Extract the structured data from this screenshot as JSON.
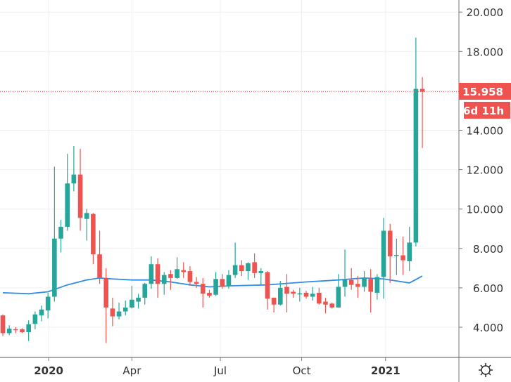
{
  "chart_data": {
    "type": "candlestick",
    "interval": "weekly",
    "colors": {
      "up": "#26a69a",
      "down": "#ef5350",
      "ma": "#2f8de4",
      "grid": "#eef0f3",
      "axis": "#777777"
    },
    "ylim": [
      2.6,
      20.6
    ],
    "y_ticks": [
      4,
      6,
      8,
      10,
      12,
      14,
      16,
      18,
      20
    ],
    "y_tick_labels": [
      "4.000",
      "6.000",
      "8.000",
      "10.000",
      "12.000",
      "14.000",
      "16.000",
      "18.000",
      "20.000"
    ],
    "x_ticks": [
      {
        "label": "2020",
        "index": 7.1,
        "bold": true
      },
      {
        "label": "Apr",
        "index": 20.0,
        "bold": false
      },
      {
        "label": "Jul",
        "index": 33.7,
        "bold": false
      },
      {
        "label": "Oct",
        "index": 46.3,
        "bold": false
      },
      {
        "label": "2021",
        "index": 59.3,
        "bold": true
      }
    ],
    "candles": [
      [
        4.6,
        4.65,
        3.55,
        3.7
      ],
      [
        3.7,
        4.1,
        3.6,
        3.93
      ],
      [
        3.9,
        4.0,
        3.7,
        3.85
      ],
      [
        3.9,
        3.95,
        3.7,
        3.75
      ],
      [
        3.75,
        4.35,
        3.3,
        4.15
      ],
      [
        4.17,
        4.8,
        3.9,
        4.65
      ],
      [
        4.6,
        5.1,
        4.3,
        4.9
      ],
      [
        4.85,
        5.75,
        4.45,
        5.55
      ],
      [
        5.55,
        12.15,
        5.3,
        8.5
      ],
      [
        8.5,
        9.45,
        7.8,
        9.1
      ],
      [
        9.1,
        12.8,
        8.9,
        11.3
      ],
      [
        11.3,
        13.2,
        10.9,
        11.75
      ],
      [
        11.75,
        13.05,
        8.9,
        9.55
      ],
      [
        9.5,
        10.0,
        8.4,
        9.8
      ],
      [
        9.75,
        9.8,
        7.2,
        7.7
      ],
      [
        7.7,
        8.9,
        6.2,
        6.5
      ],
      [
        6.5,
        7.0,
        3.2,
        5.0
      ],
      [
        4.95,
        5.5,
        4.05,
        4.55
      ],
      [
        4.55,
        5.25,
        4.4,
        4.8
      ],
      [
        4.8,
        5.35,
        4.6,
        5.0
      ],
      [
        5.0,
        6.1,
        4.95,
        5.4
      ],
      [
        5.3,
        5.7,
        4.95,
        5.5
      ],
      [
        5.5,
        6.25,
        5.15,
        6.2
      ],
      [
        6.2,
        7.6,
        5.95,
        7.2
      ],
      [
        7.2,
        7.5,
        5.5,
        6.2
      ],
      [
        6.2,
        6.8,
        5.65,
        6.65
      ],
      [
        6.7,
        6.9,
        5.9,
        6.5
      ],
      [
        6.5,
        7.55,
        6.45,
        6.95
      ],
      [
        6.9,
        7.3,
        6.5,
        6.8
      ],
      [
        6.85,
        7.1,
        6.1,
        6.3
      ],
      [
        6.3,
        6.55,
        6.0,
        6.2
      ],
      [
        6.2,
        6.5,
        5.0,
        5.7
      ],
      [
        5.75,
        5.9,
        5.5,
        5.6
      ],
      [
        5.65,
        6.8,
        5.6,
        6.45
      ],
      [
        6.45,
        6.7,
        5.95,
        6.05
      ],
      [
        6.1,
        6.9,
        5.95,
        6.65
      ],
      [
        6.65,
        8.3,
        6.5,
        7.15
      ],
      [
        7.15,
        7.4,
        6.6,
        6.85
      ],
      [
        6.85,
        7.3,
        6.4,
        7.25
      ],
      [
        7.3,
        7.75,
        6.5,
        6.75
      ],
      [
        6.75,
        7.0,
        6.15,
        6.85
      ],
      [
        6.8,
        6.85,
        4.9,
        5.45
      ],
      [
        5.5,
        5.5,
        4.75,
        5.15
      ],
      [
        5.15,
        6.35,
        5.1,
        6.0
      ],
      [
        6.05,
        6.7,
        4.75,
        5.7
      ],
      [
        5.8,
        5.9,
        5.5,
        5.7
      ],
      [
        5.7,
        6.0,
        5.3,
        5.72
      ],
      [
        5.75,
        5.85,
        5.45,
        5.55
      ],
      [
        5.55,
        6.05,
        5.35,
        5.7
      ],
      [
        5.75,
        6.0,
        5.15,
        5.2
      ],
      [
        5.3,
        5.5,
        4.7,
        5.15
      ],
      [
        5.2,
        5.25,
        4.95,
        5.0
      ],
      [
        5.0,
        6.7,
        5.0,
        6.05
      ],
      [
        6.05,
        7.95,
        5.55,
        6.4
      ],
      [
        6.4,
        7.0,
        5.9,
        6.15
      ],
      [
        6.2,
        6.6,
        5.5,
        6.05
      ],
      [
        6.05,
        6.85,
        5.8,
        6.5
      ],
      [
        6.45,
        6.95,
        4.75,
        5.8
      ],
      [
        5.75,
        6.7,
        5.4,
        6.55
      ],
      [
        6.55,
        9.55,
        5.45,
        8.9
      ],
      [
        8.9,
        9.25,
        6.25,
        7.6
      ],
      [
        7.62,
        8.5,
        6.65,
        7.67
      ],
      [
        7.65,
        8.6,
        6.65,
        7.4
      ],
      [
        7.35,
        9.1,
        6.85,
        8.3
      ],
      [
        8.3,
        18.7,
        8.1,
        16.1
      ],
      [
        16.1,
        16.7,
        13.1,
        15.958
      ]
    ],
    "candle_fields": [
      "open",
      "high",
      "low",
      "close"
    ],
    "moving_average": [
      [
        0,
        5.75
      ],
      [
        4,
        5.7
      ],
      [
        7,
        5.8
      ],
      [
        10,
        6.15
      ],
      [
        13,
        6.4
      ],
      [
        15,
        6.5
      ],
      [
        17,
        6.45
      ],
      [
        20,
        6.4
      ],
      [
        23,
        6.4
      ],
      [
        26,
        6.3
      ],
      [
        29,
        6.15
      ],
      [
        32,
        6.05
      ],
      [
        35,
        6.1
      ],
      [
        41,
        6.15
      ],
      [
        47,
        6.3
      ],
      [
        52,
        6.4
      ],
      [
        56,
        6.5
      ],
      [
        59,
        6.45
      ],
      [
        63,
        6.25
      ],
      [
        65,
        6.6
      ]
    ],
    "last_price": {
      "value": 15.958,
      "label": "15.958",
      "countdown": "6d 11h"
    }
  },
  "settings_icon": "gear-icon"
}
